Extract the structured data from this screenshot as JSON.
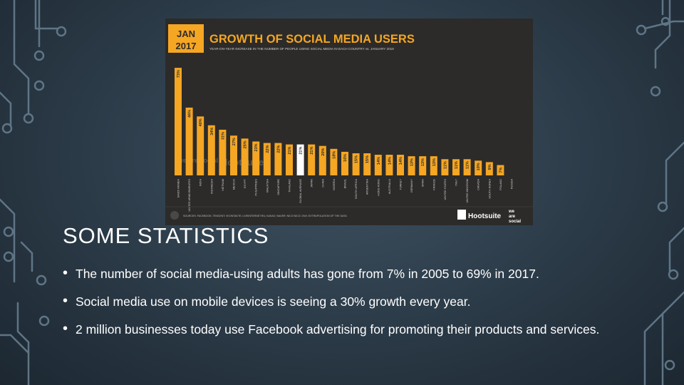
{
  "slide": {
    "title": "SOME STATISTICS",
    "bullets": [
      "The number of social media-using adults has gone from 7% in 2005 to 69% in 2017.",
      "Social media use on mobile devices is seeing a 30% growth every year.",
      "2 million businesses today use Facebook advertising for promoting their products and services."
    ]
  },
  "chart_image": {
    "badge_top": "JAN",
    "badge_bottom": "2017",
    "title": "GROWTH OF SOCIAL MEDIA USERS",
    "subtitle": "YEAR-ON-YEAR INCREASE IN THE NUMBER OF PEOPLE USING SOCIAL MEDIA IN EACH COUNTRY vs. JANUARY 2016",
    "sources": "SOURCES: FACEBOOK; TENCENT; VKONTAKTE; LIVEINTERNET.RU; KAKAO; NAVER; NICO NICO; GWI; EXTRAPOLATION OF THE DATA",
    "brand_hootsuite": "Hootsuite",
    "brand_we": "we",
    "brand_are": "are",
    "brand_social": "social",
    "watermark_we_are": "we are social",
    "watermark_hootsuite": "Hootsuite",
    "colors": {
      "bar": "#f5a623",
      "highlight_bar": "#ffffff",
      "background": "#2c2b2a",
      "badge": "#f5a623"
    }
  },
  "chart_data": {
    "type": "bar",
    "title": "GROWTH OF SOCIAL MEDIA USERS",
    "categories": [
      "SAUDI ARABIA",
      "UNITED ARAB EMIRATES",
      "INDIA",
      "INDONESIA",
      "VIETNAM",
      "MEXICO",
      "EGYPT",
      "PHILIPPINES",
      "MALAYSIA",
      "SINGAPORE",
      "THAILAND",
      "GLOBAL AVERAGE",
      "JAPAN",
      "CHINA",
      "NIGERIA",
      "BRAZIL",
      "SOUTH AFRICA",
      "ARGENTINA",
      "HONG KONG",
      "AUSTRALIA",
      "TURKEY",
      "GERMANY",
      "SPAIN",
      "FRANCE",
      "UNITED STATES",
      "ITALY",
      "UNITED KINGDOM",
      "CANADA",
      "SOUTH KOREA",
      "POLAND",
      "RUSSIA"
    ],
    "values": [
      73,
      46,
      40,
      34,
      31,
      27,
      25,
      23,
      22,
      22,
      21,
      21,
      21,
      20,
      18,
      16,
      15,
      15,
      14,
      14,
      14,
      13,
      13,
      13,
      11,
      11,
      11,
      10,
      9,
      7,
      0
    ],
    "labels": [
      "73%",
      "46%",
      "40%",
      "34%",
      "31%",
      "27%",
      "25%",
      "23%",
      "22%",
      "22%",
      "21%",
      "21%",
      "21%",
      "20%",
      "18%",
      "16%",
      "15%",
      "15%",
      "14%",
      "14%",
      "14%",
      "13%",
      "13%",
      "13%",
      "11%",
      "11%",
      "11%",
      "10%",
      "9%",
      "7%",
      ""
    ],
    "highlight_index": 11,
    "ylim": [
      0,
      75
    ]
  }
}
